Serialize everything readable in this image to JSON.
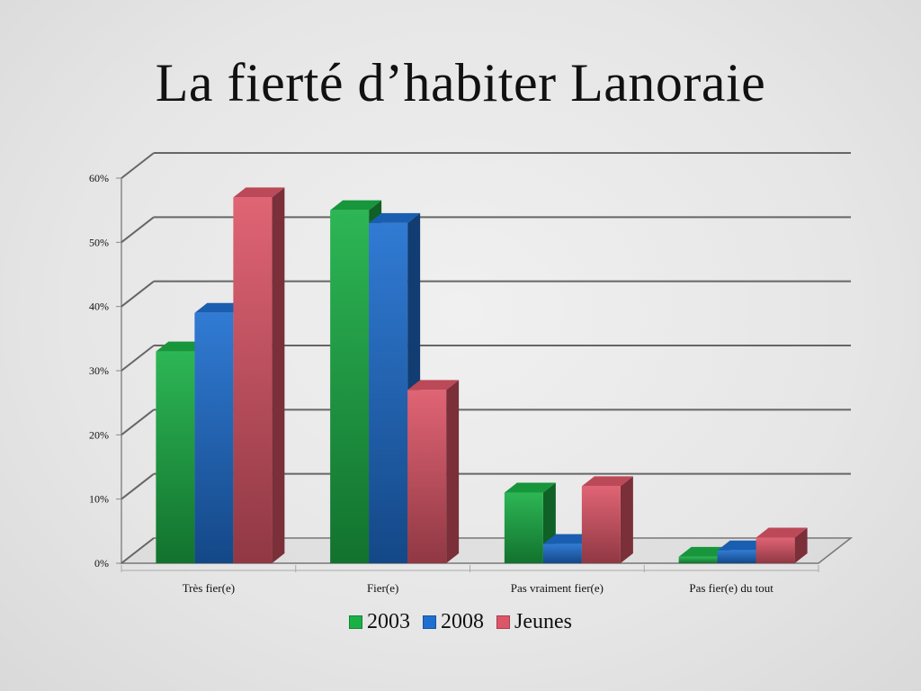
{
  "slide": {
    "title": "La fierté d’habiter Lanoraie"
  },
  "chart_data": {
    "type": "bar",
    "style": "3d-clustered",
    "title": "",
    "categories": [
      "Très fier(e)",
      "Fier(e)",
      "Pas vraiment fier(e)",
      "Pas fier(e) du tout"
    ],
    "series": [
      {
        "name": "2003",
        "values": [
          33,
          55,
          11,
          1
        ],
        "color": "#1bb046"
      },
      {
        "name": "2008",
        "values": [
          39,
          53,
          3,
          2
        ],
        "color": "#1f6fd0"
      },
      {
        "name": "Jeunes",
        "values": [
          57,
          27,
          12,
          4
        ],
        "color": "#dd5668"
      }
    ],
    "ylim": [
      0,
      60
    ],
    "yticks": [
      "0%",
      "10%",
      "20%",
      "30%",
      "40%",
      "50%",
      "60%"
    ],
    "grid": true,
    "legend_position": "bottom"
  }
}
